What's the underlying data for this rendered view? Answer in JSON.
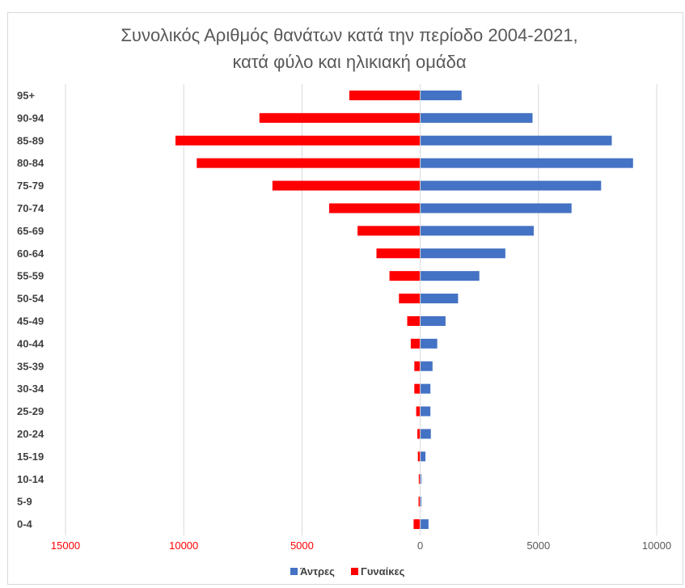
{
  "chart_data": {
    "type": "bar",
    "orientation": "horizontal",
    "title_line1": "Συνολικός Αριθμός θανάτων κατά την περίοδο 2004-2021,",
    "title_line2": "κατά φύλο και ηλικιακή ομάδα",
    "categories": [
      "95+",
      "90-94",
      "85-89",
      "80-84",
      "75-79",
      "70-74",
      "65-69",
      "60-64",
      "55-59",
      "50-54",
      "45-49",
      "40-44",
      "35-39",
      "30-34",
      "25-29",
      "20-24",
      "15-19",
      "10-14",
      "5-9",
      "0-4"
    ],
    "series": [
      {
        "name": "Άντρες",
        "color": "#4472c4",
        "values": [
          1750,
          4750,
          8100,
          9000,
          7650,
          6400,
          4800,
          3600,
          2500,
          1600,
          1070,
          720,
          520,
          430,
          430,
          450,
          220,
          50,
          50,
          350
        ]
      },
      {
        "name": "Γυναίκες",
        "color": "#ff0000",
        "values": [
          3000,
          6800,
          10350,
          9450,
          6250,
          3850,
          2650,
          1850,
          1300,
          900,
          550,
          400,
          250,
          250,
          170,
          120,
          100,
          60,
          70,
          280
        ]
      }
    ],
    "x_ticks": [
      "15000",
      "10000",
      "5000",
      "0",
      "5000",
      "10000"
    ],
    "x_tick_colors": [
      "#ff0000",
      "#ff0000",
      "#ff0000",
      "#595959",
      "#595959",
      "#595959"
    ],
    "xlim": [
      -15000,
      10000
    ],
    "grid": true,
    "legend_position": "bottom"
  }
}
